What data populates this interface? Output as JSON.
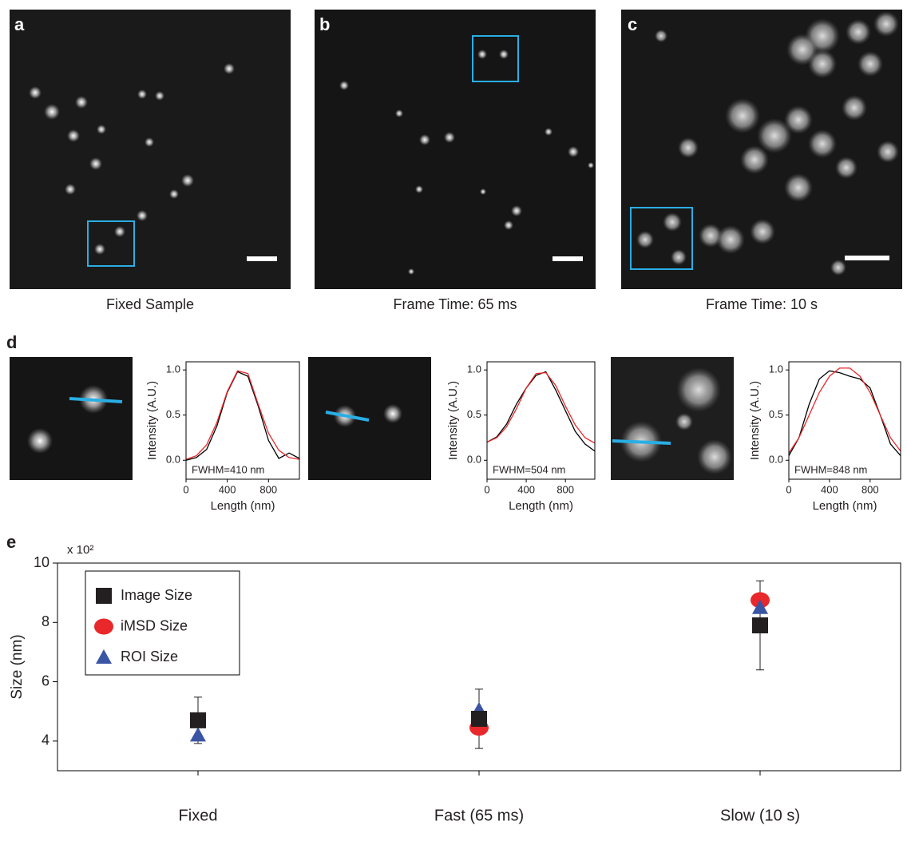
{
  "panels": [
    {
      "label": "a",
      "caption": "Fixed Sample"
    },
    {
      "label": "b",
      "caption": "Frame Time: 65 ms"
    },
    {
      "label": "c",
      "caption": "Frame Time: 10 s"
    },
    {
      "label": "d"
    },
    {
      "label": "e"
    }
  ],
  "chart_data": [
    {
      "type": "line",
      "xlabel": "Length (nm)",
      "ylabel": "Intensity (A.U.)",
      "annotation": "FWHM=410 nm",
      "x": [
        0,
        100,
        200,
        300,
        400,
        500,
        600,
        700,
        800,
        900,
        1000,
        1100
      ],
      "series": [
        {
          "color": "#000000",
          "values": [
            0.0,
            0.03,
            0.12,
            0.38,
            0.75,
            0.98,
            0.93,
            0.6,
            0.22,
            0.02,
            0.08,
            0.02
          ]
        },
        {
          "color": "#e8282b",
          "values": [
            0.01,
            0.05,
            0.17,
            0.42,
            0.76,
            0.99,
            0.96,
            0.62,
            0.3,
            0.11,
            0.03,
            0.01
          ]
        }
      ],
      "xlim": [
        0,
        1100
      ],
      "ylim": [
        -0.21,
        1.09
      ],
      "xticks": [
        0,
        400,
        800
      ],
      "yticks": [
        {
          "value": 0,
          "label": "0.0"
        },
        {
          "value": 0.5,
          "label": "0.5"
        },
        {
          "value": 1,
          "label": "1.0"
        }
      ]
    },
    {
      "type": "line",
      "xlabel": "Length (nm)",
      "ylabel": "Intensity (A.U.)",
      "annotation": "FWHM=504 nm",
      "x": [
        0,
        100,
        200,
        300,
        400,
        500,
        600,
        700,
        800,
        900,
        1000,
        1100
      ],
      "series": [
        {
          "color": "#000000",
          "values": [
            0.2,
            0.26,
            0.4,
            0.62,
            0.8,
            0.94,
            0.98,
            0.78,
            0.55,
            0.32,
            0.18,
            0.1
          ]
        },
        {
          "color": "#e8282b",
          "values": [
            0.2,
            0.25,
            0.37,
            0.57,
            0.8,
            0.96,
            0.97,
            0.83,
            0.6,
            0.39,
            0.25,
            0.19
          ]
        }
      ],
      "xlim": [
        0,
        1100
      ],
      "ylim": [
        -0.21,
        1.09
      ],
      "xticks": [
        0,
        400,
        800
      ],
      "yticks": [
        {
          "value": 0,
          "label": "0.0"
        },
        {
          "value": 0.5,
          "label": "0.5"
        },
        {
          "value": 1,
          "label": "1.0"
        }
      ]
    },
    {
      "type": "line",
      "xlabel": "Length (nm)",
      "ylabel": "Intensity (A.U.)",
      "annotation": "FWHM=848 nm",
      "x": [
        0,
        100,
        200,
        300,
        400,
        500,
        600,
        700,
        800,
        900,
        1000,
        1100
      ],
      "series": [
        {
          "color": "#000000",
          "values": [
            0.05,
            0.25,
            0.62,
            0.9,
            0.99,
            0.97,
            0.93,
            0.9,
            0.8,
            0.5,
            0.18,
            0.05
          ]
        },
        {
          "color": "#e8282b",
          "values": [
            0.08,
            0.25,
            0.5,
            0.75,
            0.93,
            1.02,
            1.02,
            0.93,
            0.75,
            0.5,
            0.25,
            0.1
          ]
        }
      ],
      "xlim": [
        0,
        1100
      ],
      "ylim": [
        -0.21,
        1.09
      ],
      "xticks": [
        0,
        400,
        800
      ],
      "yticks": [
        {
          "value": 0,
          "label": "0.0"
        },
        {
          "value": 0.5,
          "label": "0.5"
        },
        {
          "value": 1,
          "label": "1.0"
        }
      ]
    },
    {
      "type": "scatter",
      "ylabel": "Size (nm)",
      "y_multiplier": "x 10²",
      "categories": [
        "Fixed",
        "Fast (65 ms)",
        "Slow (10 s)"
      ],
      "series": [
        {
          "name": "Image Size",
          "marker": "square",
          "color": "#231f20",
          "values": [
            4.7,
            4.75,
            7.9
          ],
          "errors": [
            0.78,
            1.0,
            1.5
          ]
        },
        {
          "name": "iMSD Size",
          "marker": "circle",
          "color": "#e8282b",
          "values": [
            null,
            4.45,
            8.75
          ]
        },
        {
          "name": "ROI Size",
          "marker": "triangle",
          "color": "#3a55a4",
          "values": [
            4.2,
            5.05,
            8.5
          ]
        }
      ],
      "ylim": [
        3,
        10
      ],
      "yticks": [
        4,
        6,
        8,
        10
      ],
      "legend": "upper left"
    }
  ]
}
